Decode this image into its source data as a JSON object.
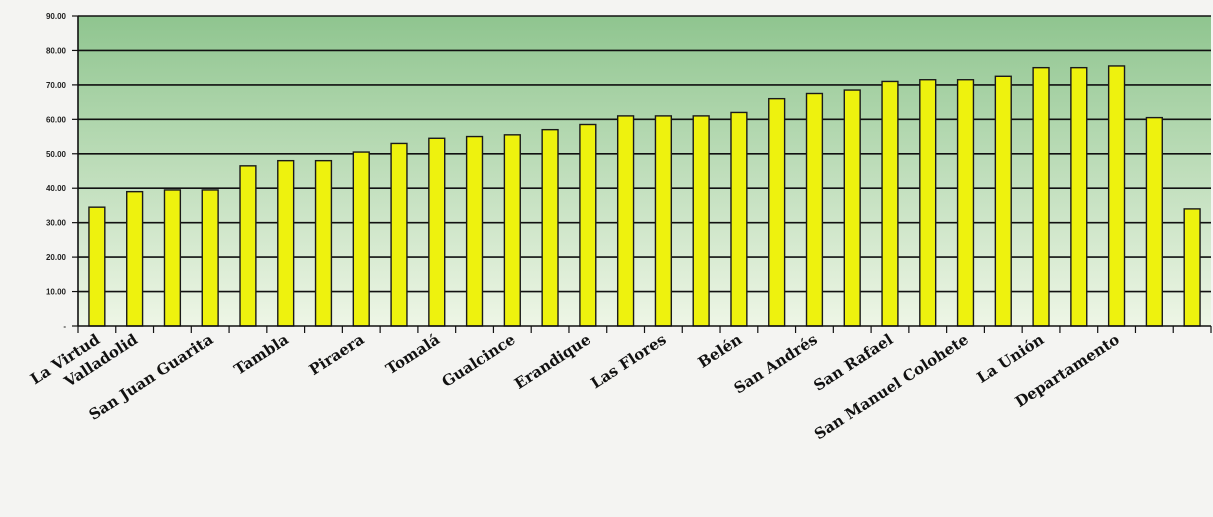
{
  "chart_data": {
    "type": "bar",
    "title": "",
    "xlabel": "",
    "ylabel": "",
    "ylim": [
      0,
      90
    ],
    "yticks": [
      {
        "value": 0,
        "label": "-"
      },
      {
        "value": 10,
        "label": "10.00"
      },
      {
        "value": 20,
        "label": "20.00"
      },
      {
        "value": 30,
        "label": "30.00"
      },
      {
        "value": 40,
        "label": "40.00"
      },
      {
        "value": 50,
        "label": "50.00"
      },
      {
        "value": 60,
        "label": "60.00"
      },
      {
        "value": 70,
        "label": "70.00"
      },
      {
        "value": 80,
        "label": "80.00"
      },
      {
        "value": 90,
        "label": "90.00"
      }
    ],
    "grid": true,
    "legend": "none",
    "colors": {
      "bar_fill": "#eef20e",
      "bar_stroke": "#1a1a1a",
      "plot_bg_top": "#8fc58f",
      "plot_bg_bottom": "#eef6e6",
      "gridline": "#111111"
    },
    "values": [
      34.5,
      39.0,
      39.5,
      39.5,
      46.5,
      48.0,
      48.0,
      50.5,
      53.0,
      54.5,
      55.0,
      55.5,
      57.0,
      58.5,
      61.0,
      61.0,
      61.0,
      62.0,
      66.0,
      67.5,
      68.5,
      71.0,
      71.5,
      71.5,
      72.5,
      75.0,
      75.0,
      75.5,
      60.5,
      34.0
    ],
    "labeled_categories": [
      {
        "index": 0,
        "label": "La Virtud"
      },
      {
        "index": 1,
        "label": "Valladolid"
      },
      {
        "index": 3,
        "label": "San Juan Guarita"
      },
      {
        "index": 5,
        "label": "Tambla"
      },
      {
        "index": 7,
        "label": "Piraera"
      },
      {
        "index": 9,
        "label": "Tomalá"
      },
      {
        "index": 11,
        "label": "Gualcince"
      },
      {
        "index": 13,
        "label": "Erandique"
      },
      {
        "index": 15,
        "label": "Las Flores"
      },
      {
        "index": 17,
        "label": "Belén"
      },
      {
        "index": 19,
        "label": "San Andrés"
      },
      {
        "index": 21,
        "label": "San Rafael"
      },
      {
        "index": 23,
        "label": "San Manuel Colohete"
      },
      {
        "index": 25,
        "label": "La Unión"
      },
      {
        "index": 27,
        "label": "Departamento"
      }
    ]
  }
}
